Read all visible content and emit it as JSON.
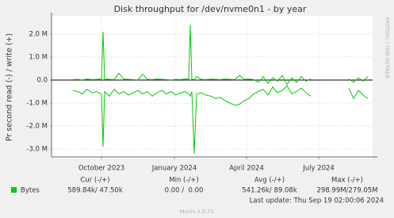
{
  "chart_data": {
    "type": "line",
    "title": "Disk throughput for /dev/nvme0n1 - by year",
    "y_label": "Pr second read (-) / write (+)",
    "watermark": "RRDTOOL / TOBI OETIKER",
    "x": [
      -36,
      -30,
      -24,
      -18,
      -12,
      -6,
      0,
      2,
      4,
      10,
      16,
      22,
      28,
      34,
      40,
      46,
      52,
      58,
      64,
      70,
      76,
      82,
      88,
      94,
      100,
      106,
      110,
      112,
      114,
      117,
      120,
      126,
      132,
      138,
      144,
      150,
      156,
      162,
      168,
      174,
      180,
      186,
      192,
      198,
      204,
      210,
      216,
      222,
      228,
      234,
      240,
      246,
      252,
      258,
      264,
      288,
      312,
      318,
      324,
      330,
      336
    ],
    "xlim": [
      -63,
      342
    ],
    "xticks": [
      {
        "value": 0,
        "label": "October 2023"
      },
      {
        "value": 92,
        "label": "January 2024"
      },
      {
        "value": 183,
        "label": "April 2024"
      },
      {
        "value": 274,
        "label": "July 2024"
      }
    ],
    "ylim": [
      -3340000,
      2720000
    ],
    "yticks": [
      {
        "value": -3000000,
        "label": "-3.0 M"
      },
      {
        "value": -2000000,
        "label": "-2.0 M"
      },
      {
        "value": -1000000,
        "label": "-1.0 M"
      },
      {
        "value": 0,
        "label": "0.0"
      },
      {
        "value": 1000000,
        "label": "1.0 M"
      },
      {
        "value": 2000000,
        "label": "2.0 M"
      }
    ],
    "grid": true,
    "series": [
      {
        "name": "Bytes",
        "color": "#00cc00",
        "values": [
          20000,
          30000,
          10000,
          40000,
          20000,
          30000,
          50000,
          2100000,
          40000,
          30000,
          20000,
          300000,
          40000,
          30000,
          20000,
          10000,
          250000,
          30000,
          20000,
          40000,
          30000,
          20000,
          10000,
          30000,
          20000,
          40000,
          50000,
          2400000,
          30000,
          20000,
          150000,
          30000,
          20000,
          40000,
          30000,
          20000,
          40000,
          30000,
          20000,
          200000,
          30000,
          40000,
          20000,
          -100000,
          150000,
          -150000,
          100000,
          -50000,
          200000,
          -200000,
          100000,
          -100000,
          150000,
          -50000,
          50000,
          null,
          50000,
          -100000,
          100000,
          -50000,
          150000
        ]
      },
      {
        "color": "#00cc00",
        "values": [
          -450000,
          -500000,
          -600000,
          -400000,
          -550000,
          -500000,
          -600000,
          -2900000,
          -500000,
          -700000,
          -400000,
          -600000,
          -500000,
          -650000,
          -550000,
          -450000,
          -600000,
          -500000,
          -700000,
          -550000,
          -450000,
          -600000,
          -500000,
          -650000,
          -550000,
          -500000,
          -600000,
          -700000,
          -500000,
          -3200000,
          -600000,
          -550000,
          -650000,
          -700000,
          -800000,
          -750000,
          -900000,
          -1000000,
          -1100000,
          -1050000,
          -900000,
          -800000,
          -600000,
          -500000,
          -400000,
          -650000,
          -300000,
          -550000,
          -450000,
          -250000,
          -600000,
          -500000,
          -350000,
          -550000,
          -700000,
          null,
          -350000,
          -800000,
          -450000,
          -650000,
          -800000
        ]
      }
    ],
    "legend_table": {
      "headers": [
        "Cur (-/+)",
        "Min (-/+)",
        "Avg (-/+)",
        "Max (-/+)"
      ],
      "row": [
        "589.84k/ 47.50k",
        "0.00 /  0.00",
        "541.26k/ 89.08k",
        "298.99M/279.05M"
      ]
    },
    "last_update": "Last update: Thu Sep 19 02:00:06 2024",
    "footer": "Munin 2.0.73"
  }
}
